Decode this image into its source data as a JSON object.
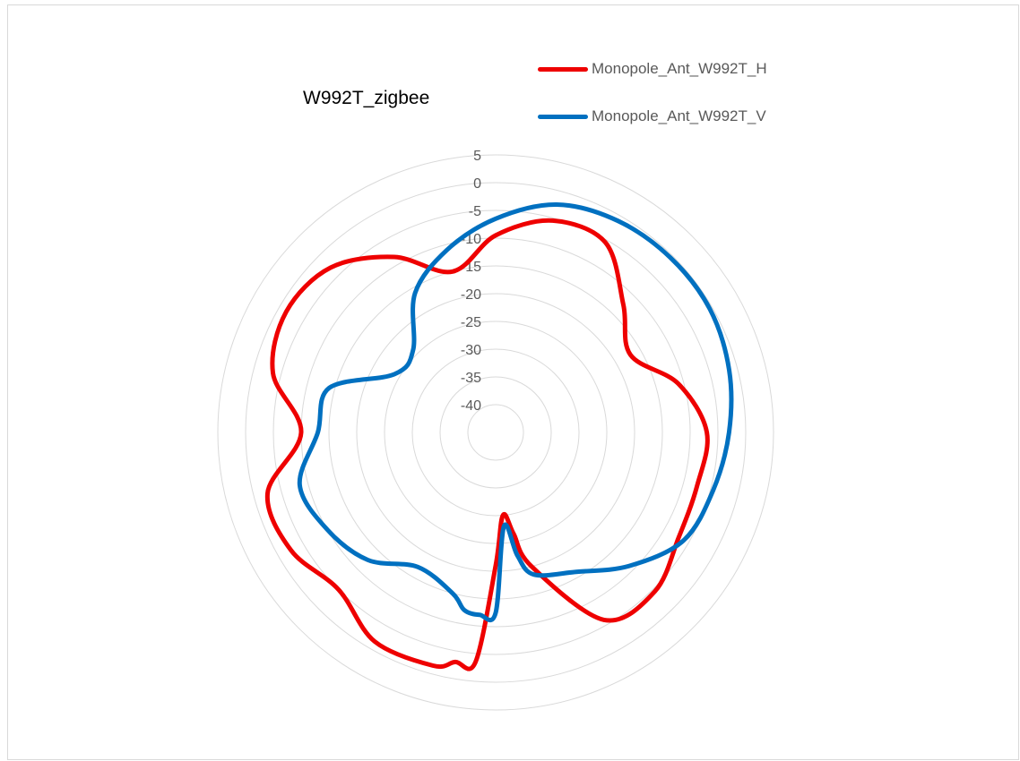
{
  "chart_data": {
    "type": "polar-line",
    "title": "W992T_zigbee",
    "r_ticks": [
      5,
      0,
      -5,
      -10,
      -15,
      -20,
      -25,
      -30,
      -35,
      -40
    ],
    "rlim": [
      -45,
      5
    ],
    "grid": true,
    "legend_position": "top-right",
    "angle_step_deg": 15,
    "series": [
      {
        "name": "Monopole_Ant_W992T_H",
        "color": "#ee0000",
        "angles_deg": [
          0,
          15,
          30,
          45,
          60,
          75,
          90,
          105,
          120,
          135,
          150,
          165,
          170,
          175,
          180,
          185,
          190,
          195,
          210,
          225,
          240,
          255,
          270,
          285,
          300,
          315,
          330,
          345
        ],
        "values": [
          -9.5,
          -5.5,
          -5.5,
          -12.5,
          -17,
          -11,
          -7,
          -7.5,
          -7,
          -4.5,
          -6,
          -20,
          -26.5,
          -30,
          -21,
          -3.5,
          -3,
          -1.5,
          -1.5,
          -5,
          -2.5,
          -2.5,
          -10,
          -3.5,
          -1.5,
          -3,
          -8.5,
          -15
        ]
      },
      {
        "name": "Monopole_Ant_W992T_V",
        "color": "#0070c0",
        "angles_deg": [
          0,
          15,
          30,
          45,
          60,
          75,
          90,
          105,
          120,
          135,
          150,
          165,
          170,
          175,
          180,
          185,
          190,
          195,
          210,
          225,
          240,
          255,
          270,
          285,
          300,
          315,
          330,
          345
        ],
        "values": [
          -6.5,
          -2.5,
          -1,
          -0.5,
          -0.5,
          -1.5,
          -3,
          -4.5,
          -6,
          -11,
          -16,
          -18.5,
          -22.5,
          -28,
          -12.5,
          -12,
          -12.5,
          -15,
          -17,
          -12.5,
          -10,
          -8.5,
          -13,
          -14,
          -24,
          -24,
          -16,
          -11
        ]
      }
    ]
  }
}
